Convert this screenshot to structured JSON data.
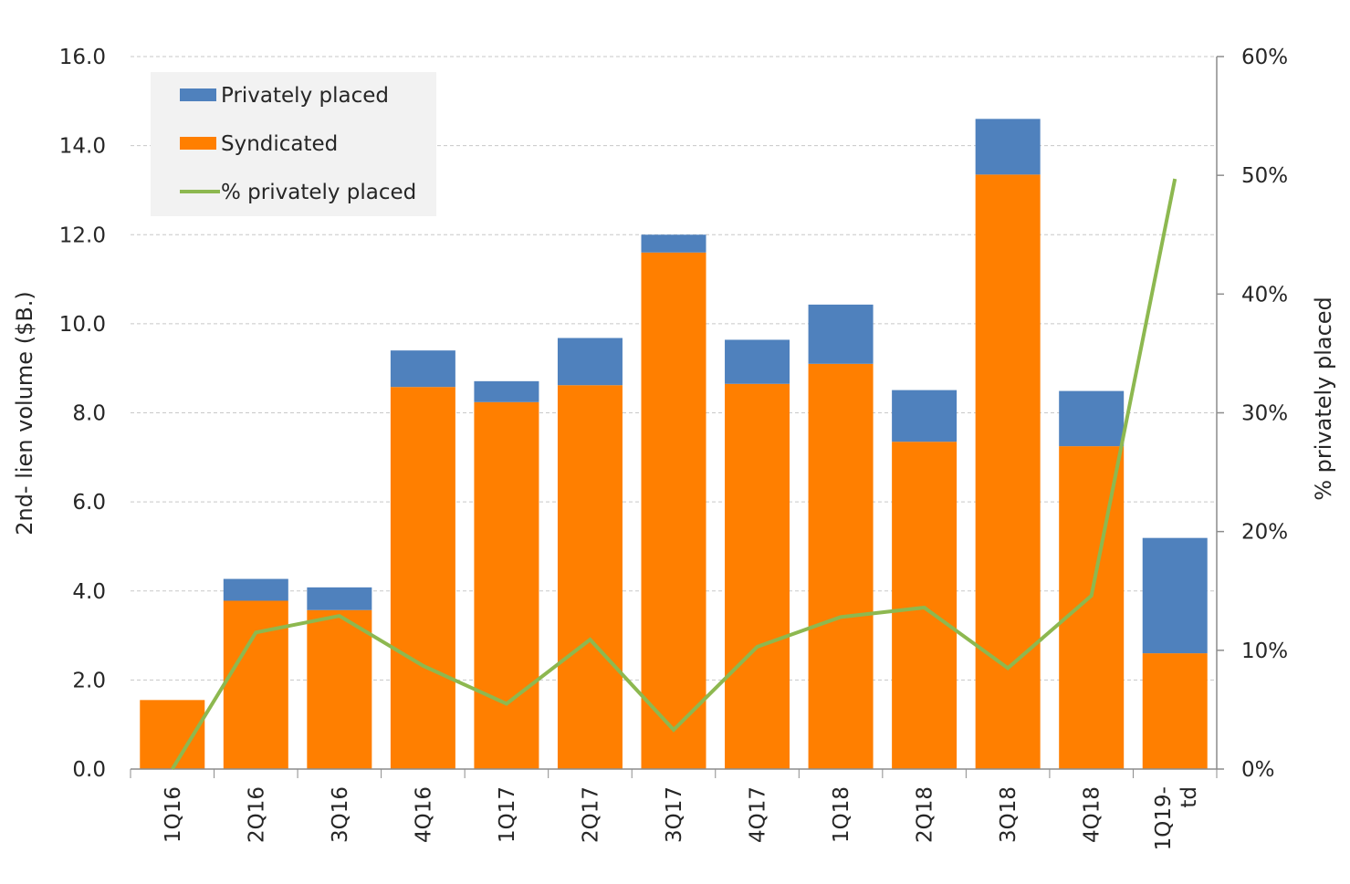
{
  "chart_data": {
    "type": "bar",
    "stacked": true,
    "categories": [
      "1Q16",
      "2Q16",
      "3Q16",
      "4Q16",
      "1Q17",
      "2Q17",
      "3Q17",
      "4Q17",
      "1Q18",
      "2Q18",
      "3Q18",
      "4Q18",
      "1Q19-td"
    ],
    "category_labels": [
      [
        "1Q16"
      ],
      [
        "2Q16"
      ],
      [
        "3Q16"
      ],
      [
        "4Q16"
      ],
      [
        "1Q17"
      ],
      [
        "2Q17"
      ],
      [
        "3Q17"
      ],
      [
        "4Q17"
      ],
      [
        "1Q18"
      ],
      [
        "2Q18"
      ],
      [
        "3Q18"
      ],
      [
        "4Q18"
      ],
      [
        "1Q19-",
        "td"
      ]
    ],
    "series": [
      {
        "name": "Syndicated",
        "axis": "left",
        "color": "#FF7F00",
        "values": [
          1.55,
          3.78,
          3.57,
          8.58,
          8.24,
          8.62,
          11.6,
          8.65,
          9.1,
          7.35,
          13.35,
          7.25,
          2.6
        ]
      },
      {
        "name": "Privately placed",
        "axis": "left",
        "color": "#4F81BD",
        "values": [
          0.0,
          0.49,
          0.51,
          0.82,
          0.47,
          1.06,
          0.4,
          0.99,
          1.33,
          1.16,
          1.25,
          1.24,
          2.59
        ]
      },
      {
        "name": "% privately placed",
        "type": "line",
        "axis": "right",
        "color": "#8DB850",
        "values": [
          0.0,
          11.5,
          12.9,
          8.7,
          5.5,
          10.9,
          3.3,
          10.3,
          12.8,
          13.6,
          8.5,
          14.6,
          49.7
        ]
      }
    ],
    "left_axis": {
      "title": "2nd- lien volume ($B.)",
      "min": 0,
      "max": 16,
      "step": 2,
      "tick_labels": [
        "0.0",
        "2.0",
        "4.0",
        "6.0",
        "8.0",
        "10.0",
        "12.0",
        "14.0",
        "16.0"
      ]
    },
    "right_axis": {
      "title": "% privately placed",
      "min": 0,
      "max": 60,
      "step": 10,
      "tick_labels": [
        "0%",
        "10%",
        "20%",
        "30%",
        "40%",
        "50%",
        "60%"
      ]
    },
    "grid": true,
    "legend": {
      "placement": "top-left",
      "entries": [
        {
          "label": "Privately placed",
          "marker": "box",
          "color": "#4F81BD"
        },
        {
          "label": "Syndicated",
          "marker": "box",
          "color": "#FF7F00"
        },
        {
          "label": "% privately placed",
          "marker": "line",
          "color": "#8DB850"
        }
      ]
    }
  }
}
